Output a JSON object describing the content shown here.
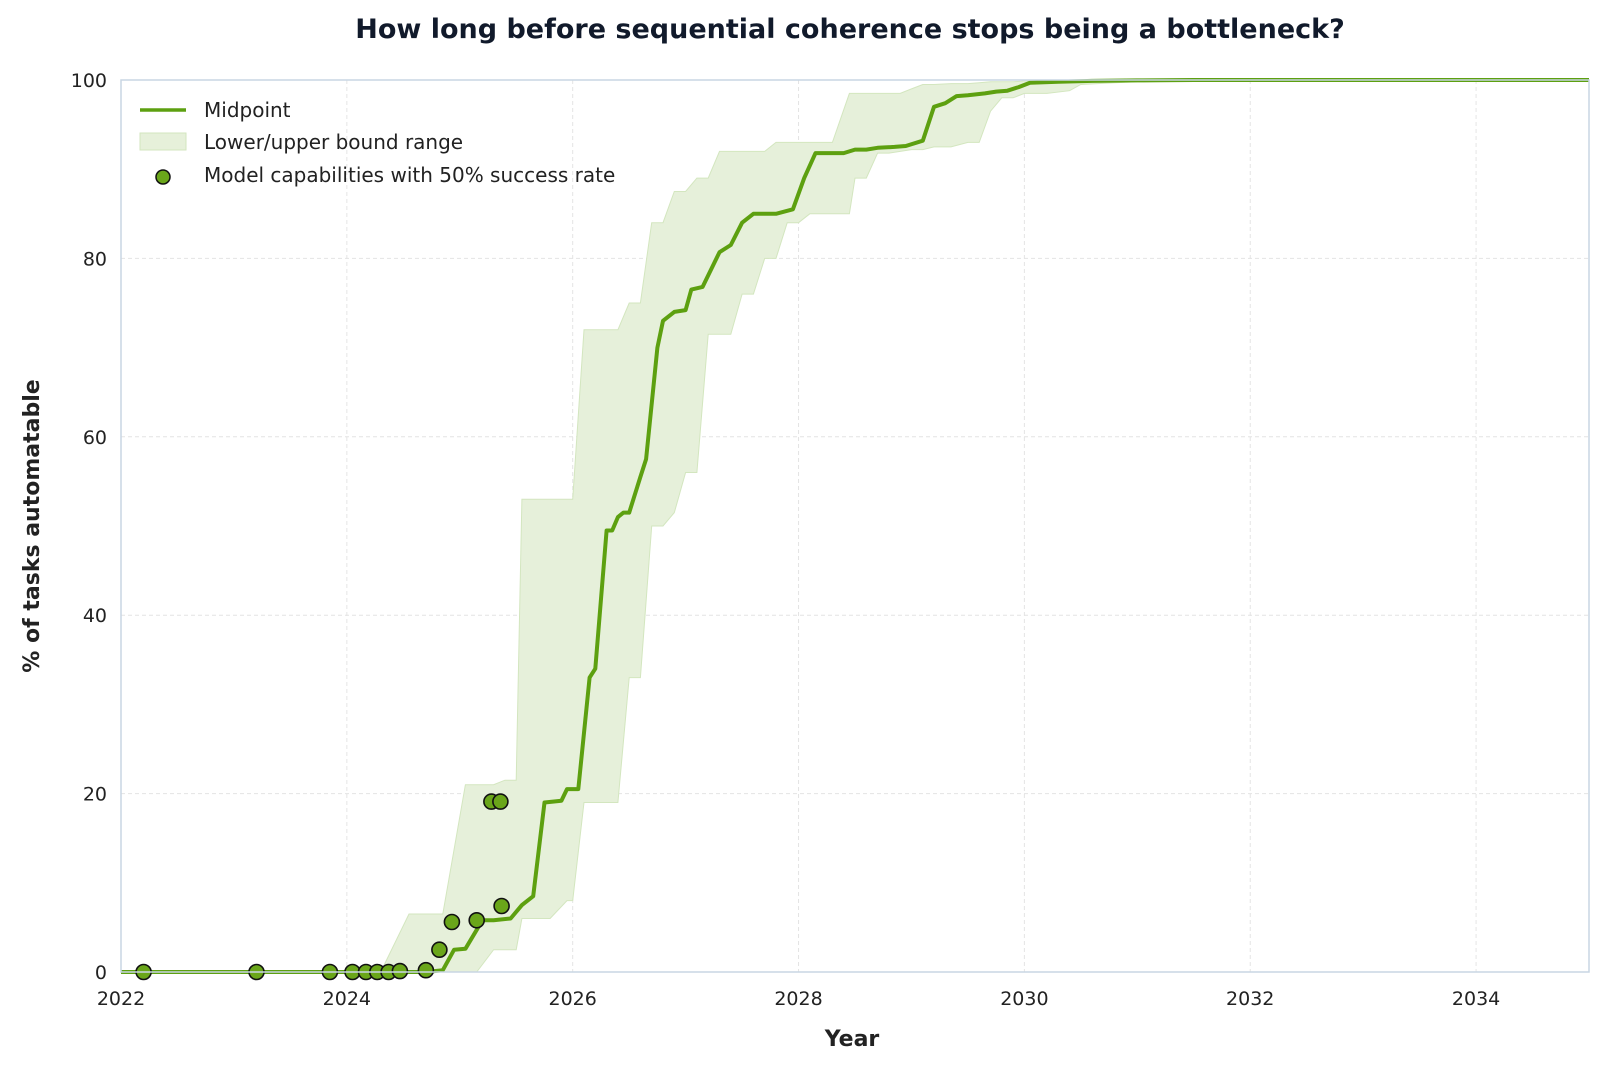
{
  "chart_data": {
    "type": "line",
    "title": "How long before sequential coherence stops being a bottleneck?",
    "xlabel": "Year",
    "ylabel": "% of tasks automatable",
    "xlim": [
      2022,
      2035
    ],
    "ylim": [
      0,
      100
    ],
    "xticks": [
      "2022",
      "2024",
      "2026",
      "2028",
      "2030",
      "2032",
      "2034"
    ],
    "yticks": [
      "0",
      "20",
      "40",
      "60",
      "80",
      "100"
    ],
    "grid": true,
    "legend_position": "top-left",
    "colors": {
      "midpoint": "#5da010",
      "band": "#e6f0da",
      "band_edge": "#d3e6bf",
      "points": "#6aa61a",
      "axes": "#c9d6e3"
    },
    "legend": [
      "Midpoint",
      "Lower/upper bound range",
      "Model capabilities with 50% success rate"
    ],
    "series": [
      {
        "name": "Midpoint",
        "x": [
          2022.0,
          2024.0,
          2024.7,
          2024.85,
          2024.95,
          2025.05,
          2025.2,
          2025.3,
          2025.45,
          2025.55,
          2025.65,
          2025.75,
          2025.9,
          2025.95,
          2026.05,
          2026.15,
          2026.2,
          2026.3,
          2026.35,
          2026.4,
          2026.45,
          2026.5,
          2026.6,
          2026.65,
          2026.75,
          2026.8,
          2026.9,
          2027.0,
          2027.05,
          2027.15,
          2027.3,
          2027.4,
          2027.5,
          2027.6,
          2027.7,
          2027.8,
          2027.95,
          2028.05,
          2028.15,
          2028.25,
          2028.4,
          2028.5,
          2028.6,
          2028.7,
          2028.85,
          2028.95,
          2029.1,
          2029.2,
          2029.3,
          2029.4,
          2029.5,
          2029.65,
          2029.75,
          2029.85,
          2029.95,
          2030.05,
          2030.3,
          2030.6,
          2031.0,
          2031.5,
          2032.0,
          2033.0,
          2035.0
        ],
        "y": [
          0,
          0,
          0,
          0.2,
          2.5,
          2.6,
          5.8,
          5.8,
          6.0,
          7.5,
          8.5,
          19.0,
          19.2,
          20.5,
          20.5,
          33,
          34,
          49.5,
          49.5,
          51,
          51.5,
          51.5,
          55.5,
          57.5,
          70,
          73,
          74,
          74.2,
          76.5,
          76.8,
          80.7,
          81.5,
          84,
          85,
          85,
          85,
          85.5,
          89,
          91.8,
          91.8,
          91.8,
          92.2,
          92.2,
          92.4,
          92.5,
          92.6,
          93.2,
          97,
          97.4,
          98.2,
          98.3,
          98.5,
          98.7,
          98.8,
          99.2,
          99.7,
          99.8,
          99.9,
          99.95,
          100,
          100,
          100,
          100
        ]
      },
      {
        "name": "Lower/upper bound range",
        "x": [
          2022.0,
          2024.0,
          2024.25,
          2024.3,
          2024.55,
          2024.6,
          2024.8,
          2024.85,
          2025.05,
          2025.15,
          2025.3,
          2025.4,
          2025.5,
          2025.55,
          2025.7,
          2025.8,
          2025.95,
          2026.0,
          2026.1,
          2026.2,
          2026.3,
          2026.4,
          2026.5,
          2026.6,
          2026.7,
          2026.8,
          2026.9,
          2027.0,
          2027.1,
          2027.2,
          2027.3,
          2027.4,
          2027.5,
          2027.6,
          2027.7,
          2027.8,
          2027.9,
          2028.0,
          2028.1,
          2028.2,
          2028.3,
          2028.45,
          2028.5,
          2028.6,
          2028.7,
          2028.8,
          2028.9,
          2029.0,
          2029.1,
          2029.2,
          2029.35,
          2029.5,
          2029.6,
          2029.7,
          2029.8,
          2029.9,
          2030.0,
          2030.2,
          2030.4,
          2030.5,
          2030.8,
          2031.0,
          2031.5,
          2032.0,
          2035.0
        ],
        "lower": [
          0,
          0,
          0,
          0,
          0,
          0,
          0,
          0,
          0,
          0,
          2.5,
          2.5,
          2.5,
          6.0,
          6.0,
          6.0,
          8.0,
          8.0,
          19.0,
          19.0,
          19.0,
          19.0,
          33.0,
          33.0,
          50.0,
          50.0,
          51.5,
          56.0,
          56.0,
          71.5,
          71.5,
          71.5,
          76.0,
          76.0,
          80.0,
          80.0,
          84.0,
          84.0,
          85.0,
          85.0,
          85.0,
          85.0,
          89.0,
          89.0,
          91.8,
          91.8,
          92.0,
          92.2,
          92.2,
          92.5,
          92.5,
          93.0,
          93.0,
          96.5,
          98.0,
          98.0,
          98.5,
          98.5,
          98.8,
          99.5,
          99.7,
          99.8,
          99.9,
          100,
          100
        ],
        "upper": [
          0,
          0,
          0,
          0,
          6.5,
          6.5,
          6.5,
          6.5,
          21.0,
          21.0,
          21.0,
          21.5,
          21.5,
          53.0,
          53.0,
          53.0,
          53.0,
          53.0,
          72.0,
          72.0,
          72.0,
          72.0,
          75.0,
          75.0,
          84.0,
          84.0,
          87.5,
          87.5,
          89.0,
          89.0,
          92.0,
          92.0,
          92.0,
          92.0,
          92.0,
          93.0,
          93.0,
          93.0,
          93.0,
          93.0,
          93.0,
          98.5,
          98.5,
          98.5,
          98.5,
          98.5,
          98.5,
          99.0,
          99.5,
          99.5,
          99.6,
          99.6,
          99.7,
          99.8,
          99.8,
          99.8,
          99.9,
          99.9,
          99.9,
          100,
          100,
          100,
          100,
          100,
          100
        ]
      },
      {
        "name": "Model capabilities with 50% success rate",
        "type": "scatter",
        "x": [
          2022.2,
          2023.2,
          2023.85,
          2024.05,
          2024.17,
          2024.27,
          2024.37,
          2024.47,
          2024.7,
          2024.82,
          2024.93,
          2025.15,
          2025.28,
          2025.36,
          2025.37
        ],
        "y": [
          0,
          0,
          0,
          0,
          0,
          0,
          0,
          0.1,
          0.2,
          2.5,
          5.6,
          5.8,
          19.1,
          19.1,
          7.4
        ]
      }
    ]
  }
}
